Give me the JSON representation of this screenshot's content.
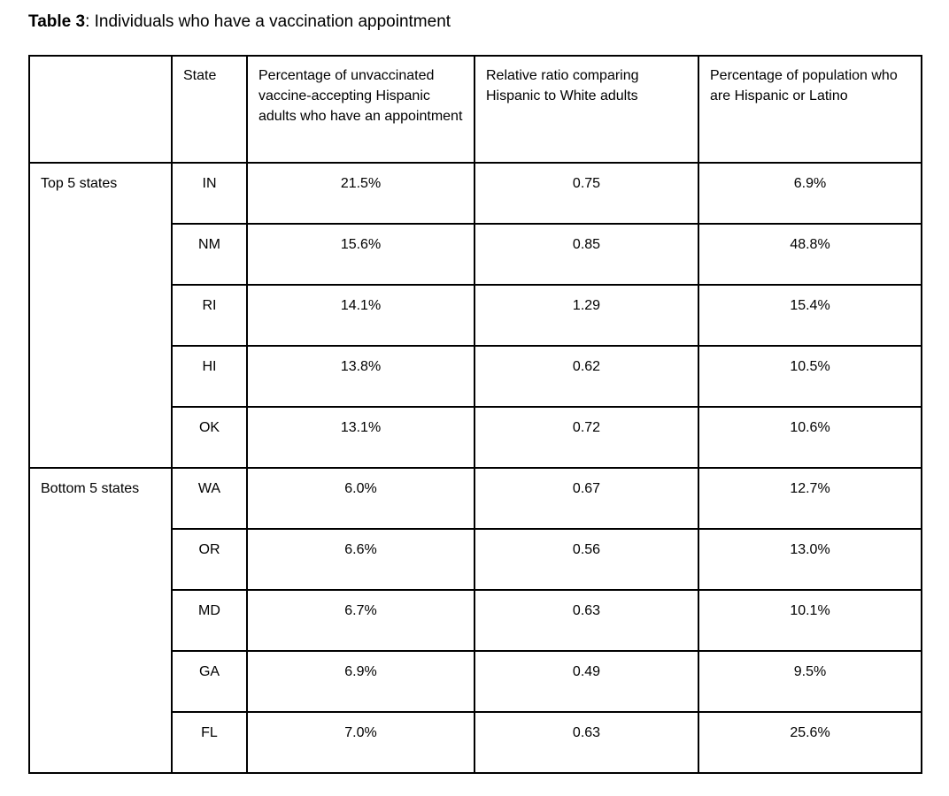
{
  "page": {
    "title_bold": "Table 3",
    "title_rest": ": Individuals who have a vaccination appointment"
  },
  "table": {
    "headers": {
      "group": "",
      "state": "State",
      "pct": "Percentage of unvaccinated vaccine-accepting Hispanic adults who have an appointment",
      "ratio": "Relative ratio comparing Hispanic to White adults",
      "pop": "Percentage of population who are Hispanic or Latino"
    },
    "groups": [
      {
        "label": "Top 5 states",
        "rows": [
          {
            "state": "IN",
            "pct": "21.5%",
            "ratio": "0.75",
            "pop": "6.9%"
          },
          {
            "state": "NM",
            "pct": "15.6%",
            "ratio": "0.85",
            "pop": "48.8%"
          },
          {
            "state": "RI",
            "pct": "14.1%",
            "ratio": "1.29",
            "pop": "15.4%"
          },
          {
            "state": "HI",
            "pct": "13.8%",
            "ratio": "0.62",
            "pop": "10.5%"
          },
          {
            "state": "OK",
            "pct": "13.1%",
            "ratio": "0.72",
            "pop": "10.6%"
          }
        ]
      },
      {
        "label": "Bottom 5 states",
        "rows": [
          {
            "state": "WA",
            "pct": "6.0%",
            "ratio": "0.67",
            "pop": "12.7%"
          },
          {
            "state": "OR",
            "pct": "6.6%",
            "ratio": "0.56",
            "pop": "13.0%"
          },
          {
            "state": "MD",
            "pct": "6.7%",
            "ratio": "0.63",
            "pop": "10.1%"
          },
          {
            "state": "GA",
            "pct": "6.9%",
            "ratio": "0.49",
            "pop": "9.5%"
          },
          {
            "state": "FL",
            "pct": "7.0%",
            "ratio": "0.63",
            "pop": "25.6%"
          }
        ]
      }
    ]
  },
  "chart_data": {
    "type": "table",
    "title": "Table 3: Individuals who have a vaccination appointment",
    "columns": [
      "Group",
      "State",
      "Percentage of unvaccinated vaccine-accepting Hispanic adults who have an appointment",
      "Relative ratio comparing Hispanic to White adults",
      "Percentage of population who are Hispanic or Latino"
    ],
    "rows": [
      [
        "Top 5 states",
        "IN",
        21.5,
        0.75,
        6.9
      ],
      [
        "Top 5 states",
        "NM",
        15.6,
        0.85,
        48.8
      ],
      [
        "Top 5 states",
        "RI",
        14.1,
        1.29,
        15.4
      ],
      [
        "Top 5 states",
        "HI",
        13.8,
        0.62,
        10.5
      ],
      [
        "Top 5 states",
        "OK",
        13.1,
        0.72,
        10.6
      ],
      [
        "Bottom 5 states",
        "WA",
        6.0,
        0.67,
        12.7
      ],
      [
        "Bottom 5 states",
        "OR",
        6.6,
        0.56,
        13.0
      ],
      [
        "Bottom 5 states",
        "MD",
        6.7,
        0.63,
        10.1
      ],
      [
        "Bottom 5 states",
        "GA",
        6.9,
        0.49,
        9.5
      ],
      [
        "Bottom 5 states",
        "FL",
        7.0,
        0.63,
        25.6
      ]
    ]
  },
  "colors": {
    "text": "#000000",
    "border": "#000000",
    "background": "#ffffff"
  }
}
